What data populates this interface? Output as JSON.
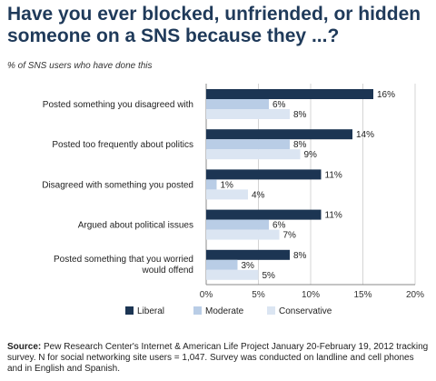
{
  "header": {
    "title_line1": "Have you ever blocked, unfriended, or hidden",
    "title_line2": "someone on a SNS because they ...?",
    "subtitle": "% of SNS users who have done this"
  },
  "source": {
    "label": "Source:",
    "text": "Pew Research Center's Internet & American Life Project January 20-February 19, 2012 tracking survey. N for social networking site users = 1,047. Survey was conducted on landline and cell phones and in English and Spanish."
  },
  "colors": {
    "Liberal": "#1c3553",
    "Moderate": "#b9cde6",
    "Conservative": "#dbe5f2",
    "axis": "#888888",
    "grid": "#d4d4d4"
  },
  "chart_data": {
    "type": "bar",
    "orientation": "horizontal",
    "title": "Have you ever blocked, unfriended, or hidden someone on a SNS because they ...?",
    "subtitle": "% of SNS users who have done this",
    "categories": [
      [
        "Posted something you disagreed with"
      ],
      [
        "Posted too frequently about politics"
      ],
      [
        "Disagreed with something you posted"
      ],
      [
        "Argued about political issues"
      ],
      [
        "Posted something that you worried",
        "would offend"
      ]
    ],
    "series": [
      {
        "name": "Liberal",
        "values": [
          16,
          14,
          11,
          11,
          8
        ]
      },
      {
        "name": "Moderate",
        "values": [
          6,
          8,
          1,
          6,
          3
        ]
      },
      {
        "name": "Conservative",
        "values": [
          8,
          9,
          4,
          7,
          5
        ]
      }
    ],
    "value_suffix": "%",
    "xlim": [
      0,
      20
    ],
    "xticks": [
      "0%",
      "5%",
      "10%",
      "15%",
      "20%"
    ],
    "grid": true,
    "legend": "bottom"
  }
}
